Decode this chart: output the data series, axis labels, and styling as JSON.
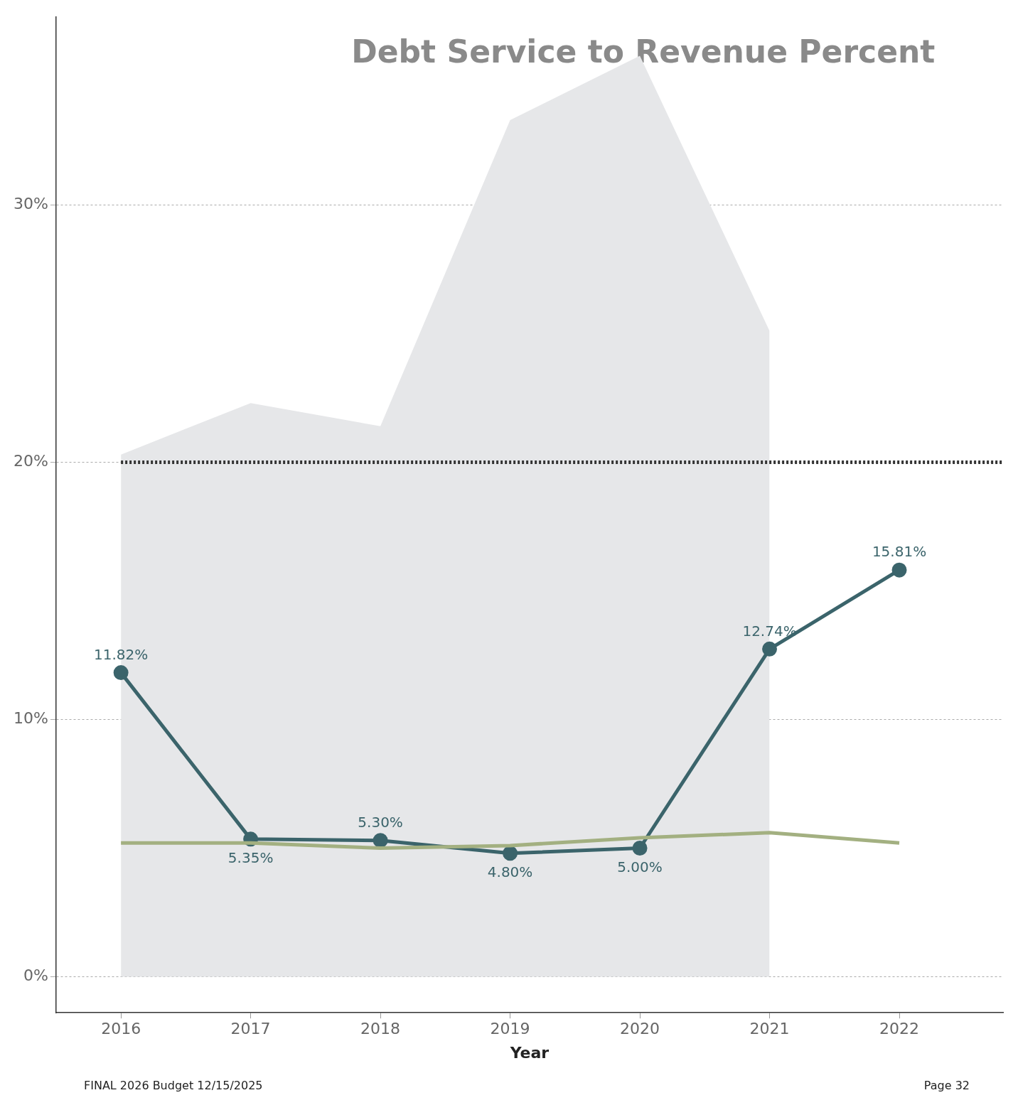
{
  "chart_data": {
    "type": "line",
    "title": "Debt Service to Revenue Percent",
    "xlabel": "Year",
    "x": [
      2016,
      2017,
      2018,
      2019,
      2020,
      2021,
      2022
    ],
    "series": [
      {
        "type": "area",
        "color": "#e6e7e9",
        "values": [
          20.3,
          22.3,
          21.4,
          33.3,
          35.8,
          25.1,
          null
        ]
      },
      {
        "color": "#a3b081",
        "marker": "none",
        "values": [
          5.2,
          5.2,
          5.0,
          5.1,
          5.4,
          5.6,
          5.2
        ]
      },
      {
        "color": "#3b646b",
        "marker": "circle",
        "data_labels": true,
        "value_labels": [
          "11.82%",
          "5.35%",
          "5.30%",
          "4.80%",
          "5.00%",
          "12.74%",
          "15.81%"
        ],
        "values": [
          11.82,
          5.35,
          5.3,
          4.8,
          5.0,
          12.74,
          15.81
        ]
      }
    ],
    "xlim": [
      2015.5,
      2022.8
    ],
    "xticks": [
      2016,
      2017,
      2018,
      2019,
      2020,
      2021,
      2022
    ],
    "ylim": [
      -1.4,
      37.3
    ],
    "yticks": [
      {
        "value": 0,
        "label": "0%"
      },
      {
        "value": 10,
        "label": "10%"
      },
      {
        "value": 20,
        "label": "20%"
      },
      {
        "value": 30,
        "label": "30%"
      }
    ],
    "grid": "y",
    "legend": false,
    "ref_lines": [
      {
        "axis": "y",
        "value": 20,
        "color": "#333333",
        "line_style": "dotted"
      }
    ],
    "annotations": [
      "FINAL 2026 Budget  12/15/2025",
      "Page 32"
    ]
  }
}
